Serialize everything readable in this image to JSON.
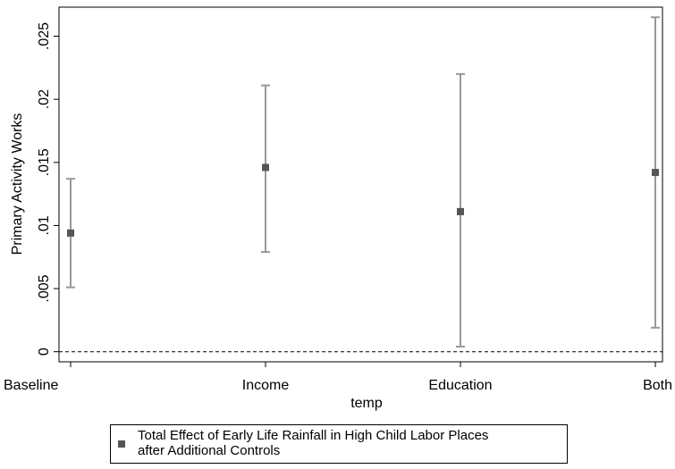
{
  "chart_data": {
    "type": "errorbar",
    "xlabel": "temp",
    "ylabel": "Primary Activity Works",
    "categories": [
      "Baseline",
      "Income",
      "Education",
      "Both"
    ],
    "series": [
      {
        "name": "Total Effect of Early Life Rainfall in High Child Labor Places\nafter Additional Controls",
        "color": "#555555",
        "bar_color": "#999999",
        "values": [
          0.0094,
          0.0146,
          0.0111,
          0.0142
        ],
        "lower": [
          0.0051,
          0.0079,
          0.0004,
          0.0019
        ],
        "upper": [
          0.0137,
          0.0211,
          0.022,
          0.0265
        ]
      }
    ],
    "ylim": [
      -0.0008,
      0.0273
    ],
    "yticks": [
      0,
      {
        "value": 0.005,
        "label": ".005"
      },
      {
        "value": 0.01,
        "label": ".01"
      },
      {
        "value": 0.015,
        "label": ".015"
      },
      {
        "value": 0.02,
        "label": ".02"
      },
      {
        "value": 0.025,
        "label": ".025"
      }
    ],
    "reference_line": 0
  }
}
